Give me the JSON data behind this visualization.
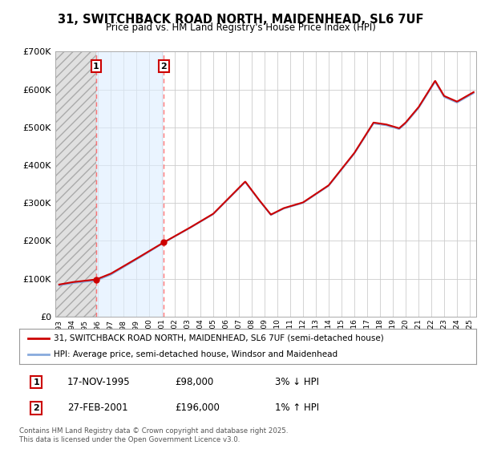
{
  "title": "31, SWITCHBACK ROAD NORTH, MAIDENHEAD, SL6 7UF",
  "subtitle": "Price paid vs. HM Land Registry's House Price Index (HPI)",
  "legend_line1": "31, SWITCHBACK ROAD NORTH, MAIDENHEAD, SL6 7UF (semi-detached house)",
  "legend_line2": "HPI: Average price, semi-detached house, Windsor and Maidenhead",
  "table_row1": [
    "1",
    "17-NOV-1995",
    "£98,000",
    "3% ↓ HPI"
  ],
  "table_row2": [
    "2",
    "27-FEB-2001",
    "£196,000",
    "1% ↑ HPI"
  ],
  "footnote": "Contains HM Land Registry data © Crown copyright and database right 2025.\nThis data is licensed under the Open Government Licence v3.0.",
  "purchase1_date": 1995.88,
  "purchase1_price": 98000,
  "purchase2_date": 2001.15,
  "purchase2_price": 196000,
  "vline1_x": 1995.88,
  "vline2_x": 2001.15,
  "ylim": [
    0,
    700000
  ],
  "xlim_start": 1992.7,
  "xlim_end": 2025.5,
  "line_color_property": "#cc0000",
  "line_color_hpi": "#88aadd",
  "background_color": "#ffffff",
  "plot_bg_color": "#ffffff",
  "grid_color": "#cccccc",
  "vline_color": "#ff6666",
  "hatch_facecolor": "#e0e0e0",
  "lightblue_facecolor": "#ddeeff"
}
